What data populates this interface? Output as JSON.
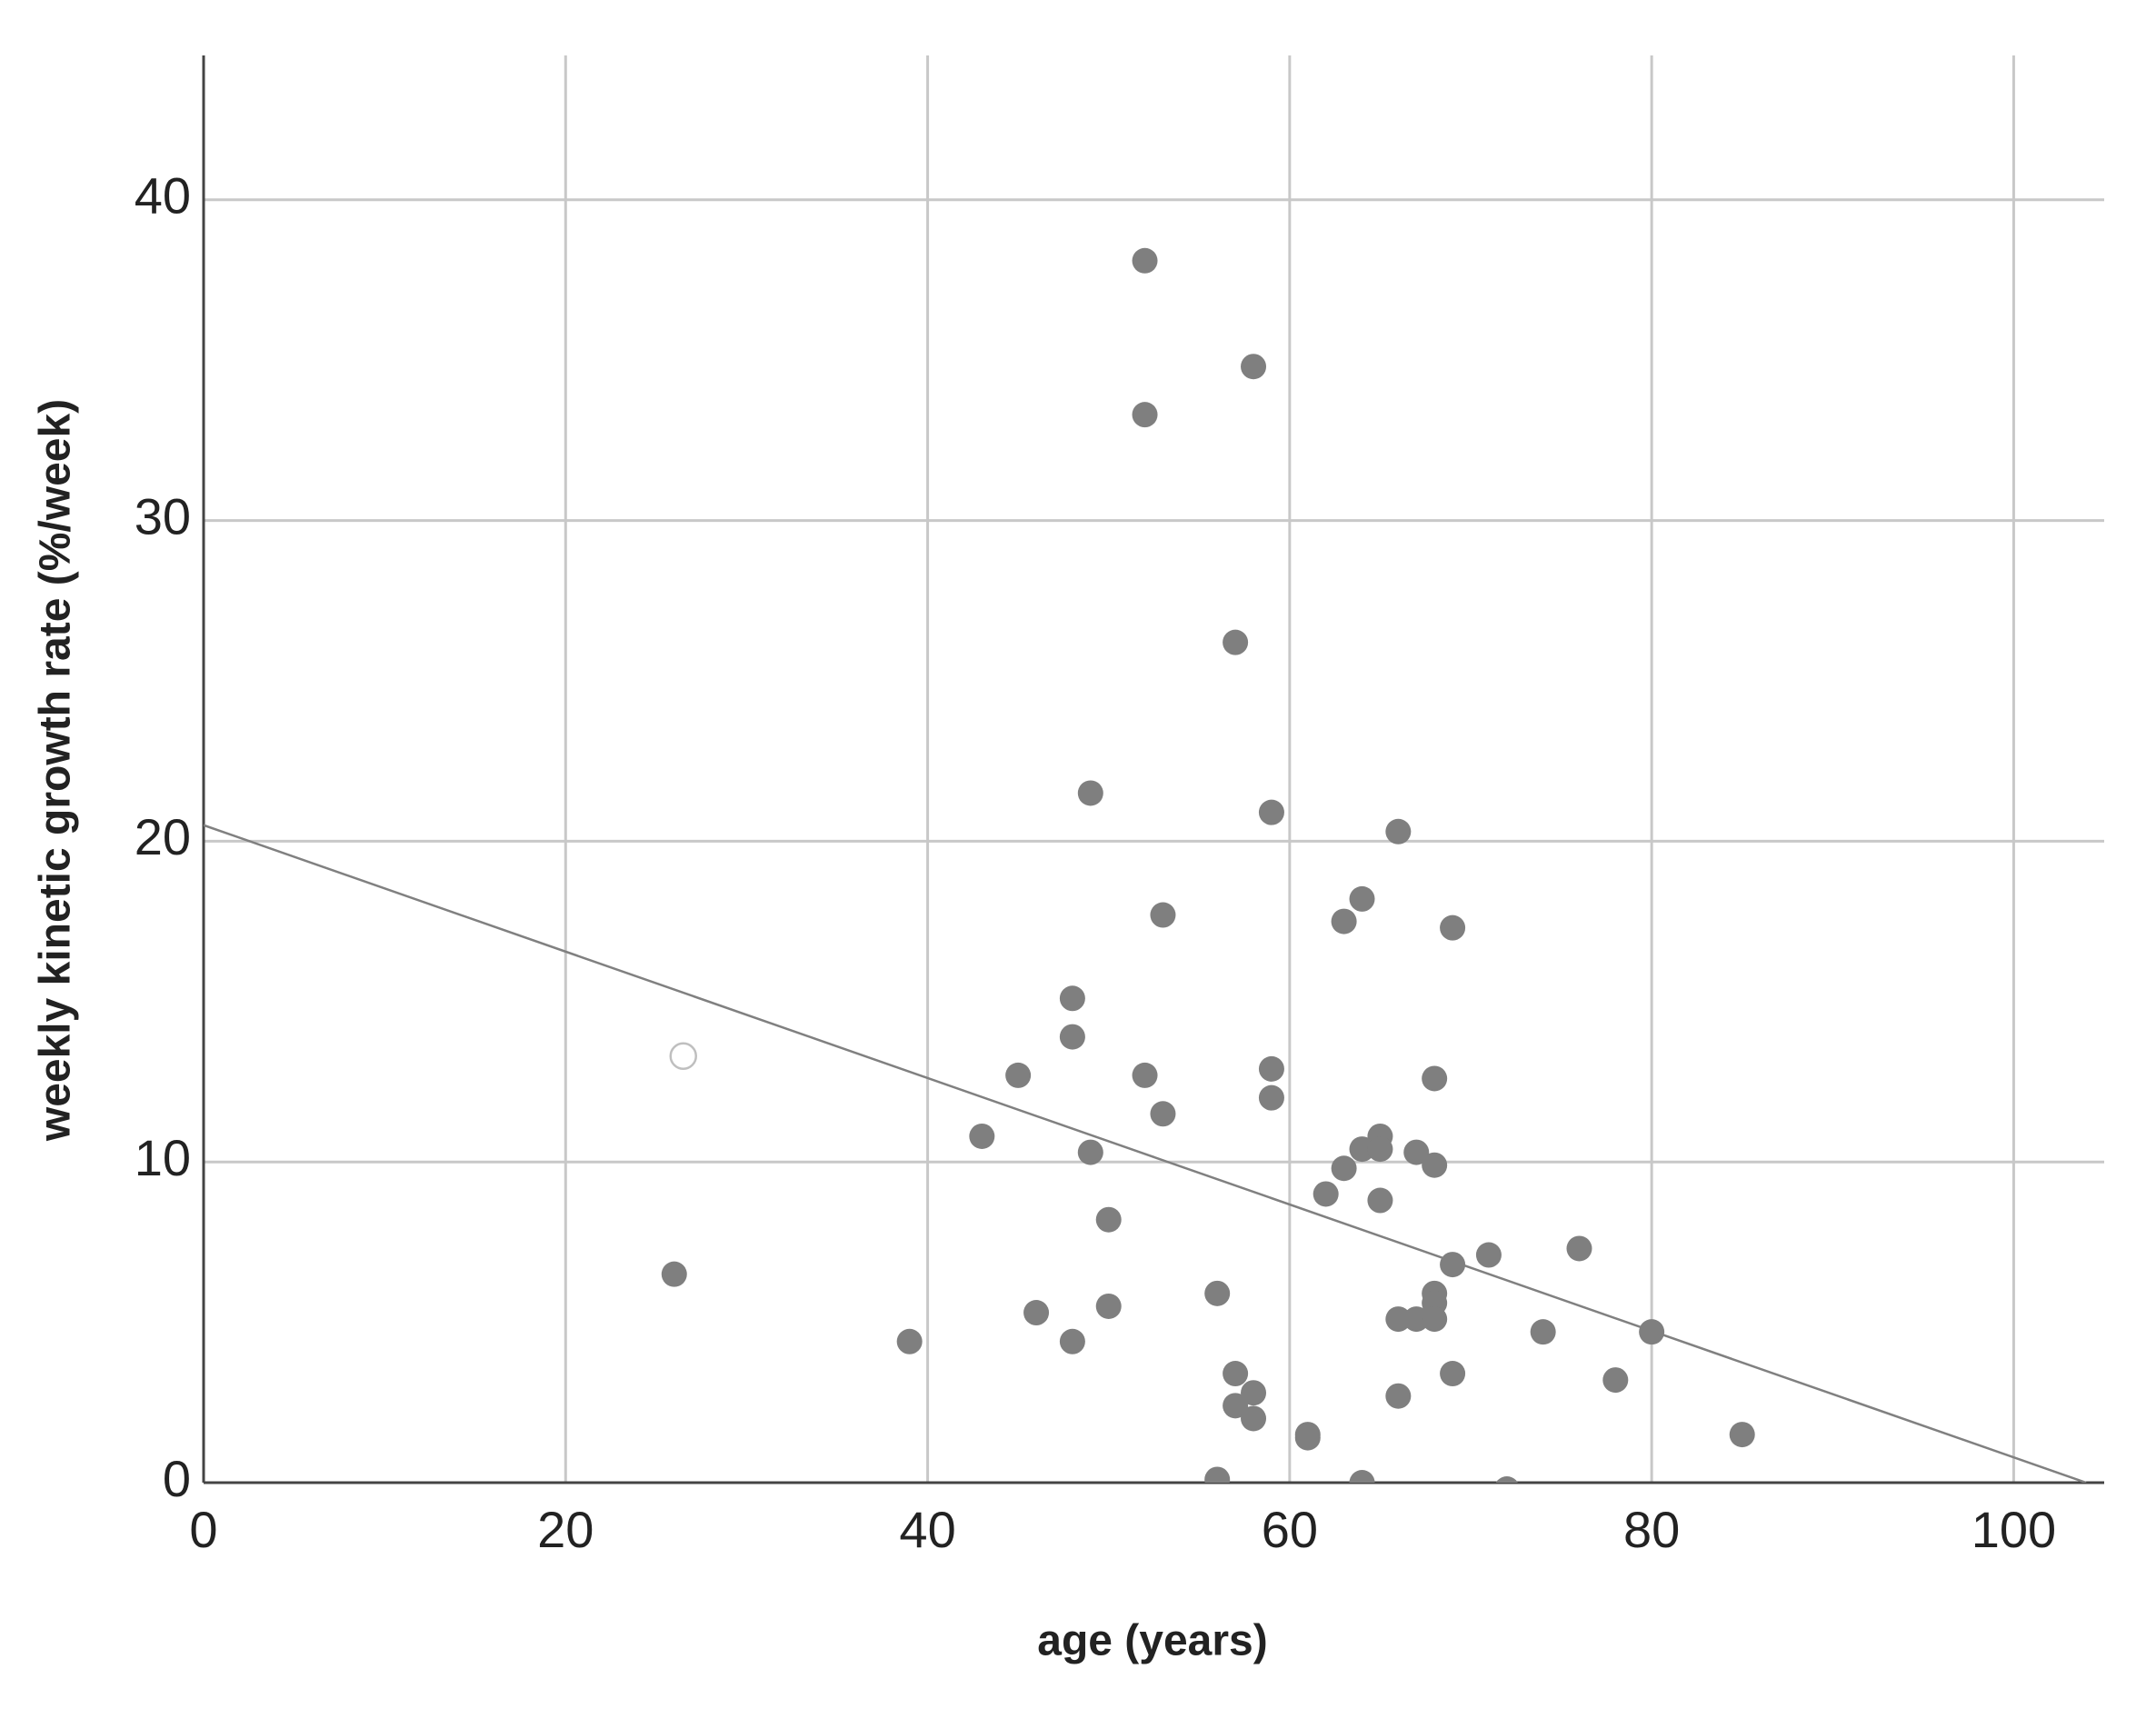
{
  "chart_data": {
    "type": "scatter",
    "x_label": "age (years)",
    "y_label": "weekly kinetic growth rate (%/week)",
    "xlim": [
      0,
      105
    ],
    "ylim": [
      0,
      44.5
    ],
    "xticks": [
      0,
      20,
      40,
      60,
      80,
      100
    ],
    "yticks": [
      0,
      10,
      20,
      30,
      40
    ],
    "grid": true,
    "color": "#7f7f7f",
    "x": [
      52,
      52,
      58,
      57,
      49,
      59,
      66,
      53,
      64,
      63,
      69,
      48,
      48,
      45,
      52,
      59,
      59,
      68,
      53,
      43,
      49,
      65,
      64,
      65,
      67,
      68,
      63,
      62,
      65,
      50,
      69,
      71,
      76,
      26,
      56,
      68,
      68,
      50,
      46,
      66,
      67,
      68,
      74,
      80,
      39,
      48,
      57,
      69,
      78,
      58,
      66,
      57,
      58,
      61,
      61,
      85,
      56,
      64,
      72
    ],
    "values": [
      38.1,
      33.3,
      34.8,
      26.2,
      21.5,
      20.9,
      20.3,
      17.7,
      18.2,
      17.5,
      17.3,
      15.1,
      13.9,
      12.7,
      12.7,
      12.9,
      12.0,
      12.6,
      11.5,
      10.8,
      10.3,
      10.8,
      10.4,
      10.4,
      10.3,
      9.9,
      9.8,
      9.0,
      8.8,
      8.2,
      6.8,
      7.1,
      7.3,
      6.5,
      5.9,
      5.9,
      5.6,
      5.5,
      5.3,
      5.1,
      5.1,
      5.1,
      4.7,
      4.7,
      4.4,
      4.4,
      3.4,
      3.4,
      3.2,
      2.8,
      2.7,
      2.4,
      2.0,
      1.5,
      1.4,
      1.5,
      0.1,
      0.0,
      -0.2
    ],
    "open_points": {
      "x": [
        26.5
      ],
      "values": [
        13.3
      ],
      "color": "#bfbfbf"
    },
    "fit_line": {
      "x": [
        0,
        104
      ],
      "values": [
        20.5,
        0
      ],
      "color": "#808080"
    }
  }
}
